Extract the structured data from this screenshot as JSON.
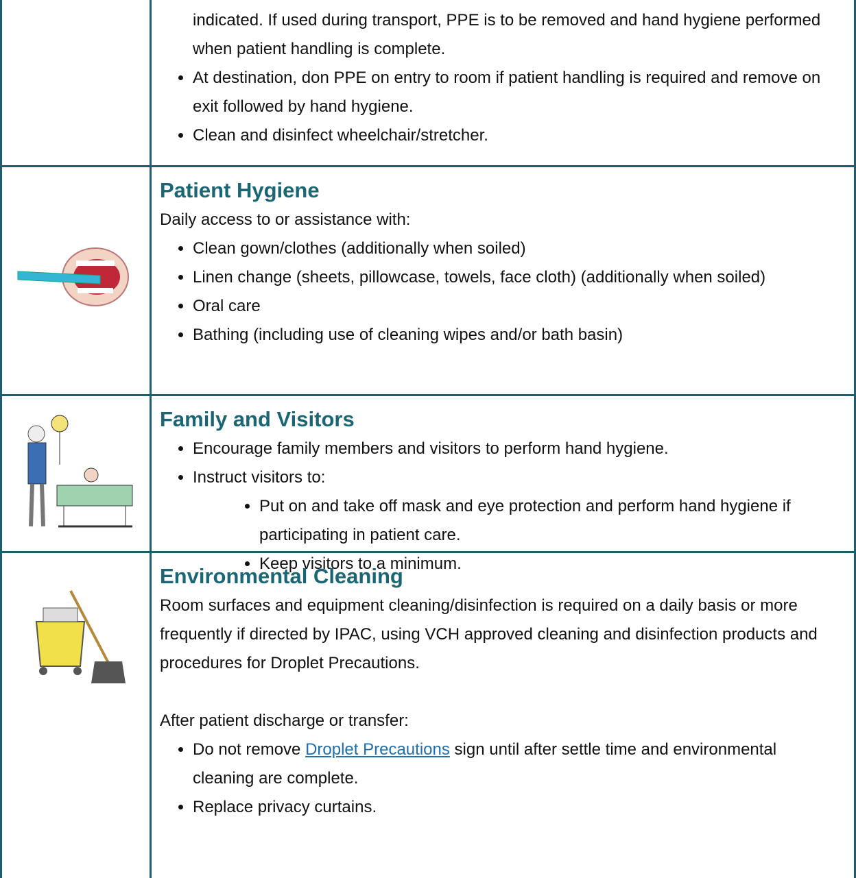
{
  "rows": [
    {
      "continuation": "indicated. If used during transport, PPE is to be removed and hand hygiene performed when patient handling is complete.",
      "bullets": [
        "At destination, don PPE on entry to room if patient handling is required and remove on exit followed by hand hygiene.",
        "Clean and disinfect wheelchair/stretcher."
      ]
    },
    {
      "heading": "Patient Hygiene",
      "intro": "Daily access to or assistance with:",
      "bullets": [
        "Clean gown/clothes (additionally when soiled)",
        "Linen change (sheets, pillowcase, towels, face cloth) (additionally when soiled)",
        "Oral care",
        "Bathing (including use of cleaning wipes and/or bath basin)"
      ]
    },
    {
      "heading": "Family and Visitors",
      "bullets": [
        "Encourage family members and visitors to perform hand hygiene.",
        "Instruct visitors to:"
      ],
      "sub_bullets": [
        "Put on and take off mask and eye protection and perform hand hygiene if participating in patient care.",
        "Keep visitors to a minimum."
      ]
    },
    {
      "heading": "Environmental Cleaning",
      "intro": "Room surfaces and equipment cleaning/disinfection is required on a daily basis or more frequently if directed by IPAC, using VCH approved cleaning and disinfection products and procedures for Droplet Precautions.",
      "intro2": "After patient discharge or transfer:",
      "bullets": [
        {
          "before": "Do not remove",
          "link": "Droplet Precautions",
          "after": "sign until after settle time and environmental cleaning are complete."
        },
        "Replace privacy curtains."
      ]
    }
  ]
}
